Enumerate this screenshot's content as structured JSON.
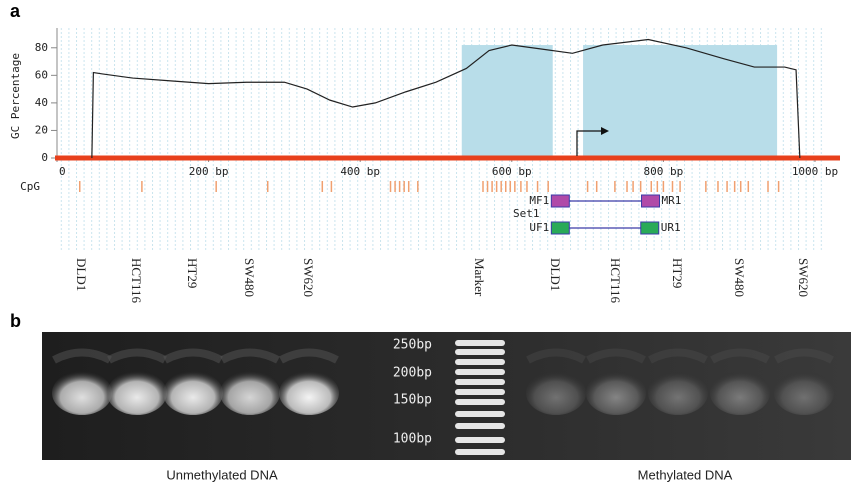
{
  "chart_data": {
    "type": "line",
    "label": "a",
    "y_label": "GC Percentage",
    "x": [
      46,
      48,
      60,
      100,
      150,
      200,
      250,
      300,
      330,
      360,
      390,
      420,
      460,
      500,
      540,
      570,
      600,
      640,
      680,
      720,
      780,
      830,
      880,
      920,
      960,
      975,
      980
    ],
    "values": [
      0,
      62,
      61,
      58,
      56,
      54,
      55,
      55,
      50,
      42,
      37,
      40,
      48,
      55,
      65,
      78,
      82,
      79,
      76,
      82,
      86,
      80,
      72,
      66,
      66,
      64,
      0
    ],
    "color": "#222222",
    "xlim": [
      0,
      1000
    ],
    "ylim": [
      0,
      90
    ],
    "xticks": [
      0,
      {
        "value": 200,
        "label": "200 bp"
      },
      {
        "value": 400,
        "label": "400 bp"
      },
      {
        "value": 600,
        "label": "600 bp"
      },
      {
        "value": 800,
        "label": "800 bp"
      },
      {
        "value": 1000,
        "label": "1000 bp"
      }
    ],
    "yticks": [
      0,
      20,
      40,
      60,
      80
    ],
    "baseline_color": "#e8401c",
    "islands": [
      [
        534,
        654
      ],
      [
        694,
        950
      ]
    ],
    "island_color": "#b8dde9",
    "tss": 686,
    "cpg_label": "CpG",
    "cpg_color": "#f0a070",
    "cpg_sites": [
      30,
      112,
      210,
      278,
      350,
      362,
      440,
      446,
      452,
      458,
      464,
      476,
      562,
      568,
      574,
      580,
      586,
      592,
      598,
      604,
      612,
      620,
      634,
      648,
      700,
      712,
      736,
      752,
      760,
      770,
      784,
      792,
      800,
      812,
      822,
      856,
      872,
      884,
      894,
      902,
      912,
      938,
      952
    ],
    "primer_set": "Set1",
    "primers": [
      {
        "name": "MF1",
        "position": 664,
        "color": "#b04aa8"
      },
      {
        "name": "MR1",
        "position": 783,
        "color": "#b04aa8"
      },
      {
        "name": "UF1",
        "position": 664,
        "color": "#2aaa58"
      },
      {
        "name": "UR1",
        "position": 782,
        "color": "#2aaa58"
      }
    ]
  },
  "gel": {
    "label": "b",
    "lanes": [
      "DLD1",
      "HCT116",
      "HT29",
      "SW480",
      "SW620",
      "Marker",
      "DLD1",
      "HCT116",
      "HT29",
      "SW480",
      "SW620"
    ],
    "marker_sizes": [
      "250bp",
      "200bp",
      "150bp",
      "100bp"
    ],
    "groups": [
      "Unmethylated DNA",
      "Methylated DNA"
    ]
  }
}
